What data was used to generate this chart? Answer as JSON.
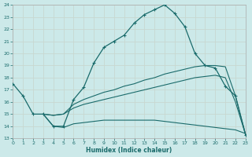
{
  "xlabel": "Humidex (Indice chaleur)",
  "background_color": "#cce9e9",
  "line_color": "#1a6b6b",
  "grid_color": "#b8d8d8",
  "xlim": [
    0,
    23
  ],
  "ylim": [
    13,
    24
  ],
  "xticks": [
    0,
    1,
    2,
    3,
    4,
    5,
    6,
    7,
    8,
    9,
    10,
    11,
    12,
    13,
    14,
    15,
    16,
    17,
    18,
    19,
    20,
    21,
    22,
    23
  ],
  "yticks": [
    13,
    14,
    15,
    16,
    17,
    18,
    19,
    20,
    21,
    22,
    23,
    24
  ],
  "line1_x": [
    0,
    1,
    2,
    3,
    4,
    5,
    6,
    7,
    8,
    9,
    10,
    11,
    12,
    13,
    14,
    15,
    16,
    17,
    18,
    19,
    20,
    21,
    22,
    23
  ],
  "line1_y": [
    17.5,
    16.5,
    15.0,
    15.0,
    14.0,
    14.0,
    16.2,
    17.2,
    19.2,
    20.5,
    21.0,
    21.5,
    22.5,
    23.2,
    23.6,
    24.0,
    23.3,
    22.2,
    20.0,
    19.0,
    18.8,
    17.3,
    16.5,
    13.3
  ],
  "line2_x": [
    3,
    4,
    5,
    6,
    7,
    8,
    9,
    10,
    11,
    12,
    13,
    14,
    15,
    16,
    17,
    18,
    19,
    20,
    21,
    22,
    23
  ],
  "line2_y": [
    15.0,
    14.9,
    15.0,
    15.8,
    16.2,
    16.5,
    16.8,
    17.0,
    17.3,
    17.5,
    17.8,
    18.0,
    18.3,
    18.5,
    18.7,
    18.9,
    19.0,
    19.0,
    18.9,
    16.5,
    13.3
  ],
  "line3_x": [
    3,
    4,
    5,
    6,
    7,
    8,
    9,
    10,
    11,
    12,
    13,
    14,
    15,
    16,
    17,
    18,
    19,
    20,
    21,
    22,
    23
  ],
  "line3_y": [
    15.0,
    14.9,
    15.0,
    15.5,
    15.8,
    16.0,
    16.2,
    16.4,
    16.6,
    16.8,
    17.0,
    17.2,
    17.4,
    17.6,
    17.8,
    18.0,
    18.1,
    18.2,
    18.0,
    16.0,
    13.3
  ],
  "line4_x": [
    3,
    4,
    5,
    6,
    7,
    8,
    9,
    10,
    11,
    12,
    13,
    14,
    15,
    16,
    17,
    18,
    19,
    20,
    21,
    22,
    23
  ],
  "line4_y": [
    15.0,
    14.0,
    13.9,
    14.2,
    14.3,
    14.4,
    14.5,
    14.5,
    14.5,
    14.5,
    14.5,
    14.5,
    14.4,
    14.3,
    14.2,
    14.1,
    14.0,
    13.9,
    13.8,
    13.7,
    13.4
  ]
}
